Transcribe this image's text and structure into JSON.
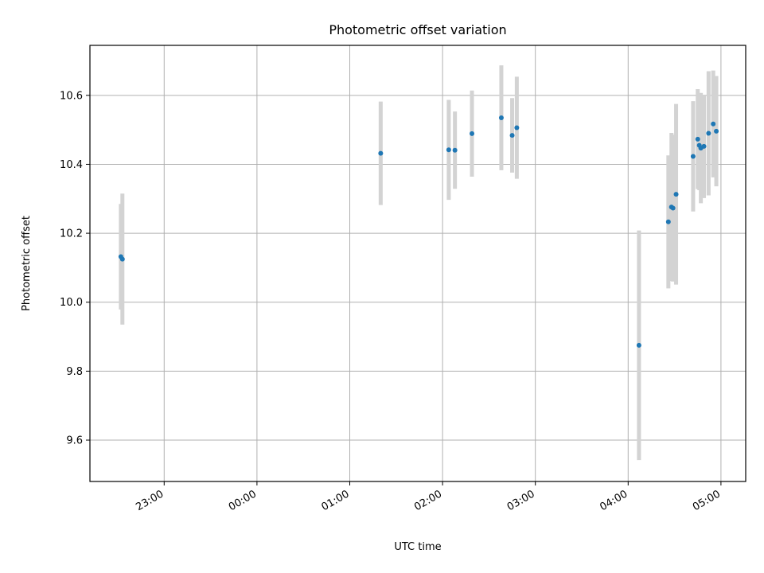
{
  "chart_data": {
    "type": "scatter",
    "title": "Photometric offset variation",
    "xlabel": "UTC time",
    "ylabel": "Photometric offset",
    "x_axis": {
      "type": "time",
      "range": [
        "22:12",
        "05:16"
      ],
      "ticks": [
        "23:00",
        "00:00",
        "01:00",
        "02:00",
        "03:00",
        "04:00",
        "05:00"
      ]
    },
    "y_axis": {
      "range": [
        9.48,
        10.745
      ],
      "ticks": [
        "9.6",
        "9.8",
        "10.0",
        "10.2",
        "10.4",
        "10.6"
      ]
    },
    "grid": true,
    "colors": {
      "point": "#1f77b4",
      "errorbar": "#d3d3d3",
      "grid": "#b0b0b0"
    },
    "series": [
      {
        "points": [
          {
            "x": "22:32",
            "y": 10.132,
            "err": 0.153
          },
          {
            "x": "22:33",
            "y": 10.125,
            "err": 0.19
          },
          {
            "x": "01:20",
            "y": 10.432,
            "err": 0.15
          },
          {
            "x": "02:04",
            "y": 10.442,
            "err": 0.145
          },
          {
            "x": "02:08",
            "y": 10.441,
            "err": 0.112
          },
          {
            "x": "02:19",
            "y": 10.489,
            "err": 0.125
          },
          {
            "x": "02:38",
            "y": 10.535,
            "err": 0.152
          },
          {
            "x": "02:45",
            "y": 10.484,
            "err": 0.108
          },
          {
            "x": "02:48",
            "y": 10.506,
            "err": 0.148
          },
          {
            "x": "04:07",
            "y": 9.875,
            "err": 0.333
          },
          {
            "x": "04:26",
            "y": 10.233,
            "err": 0.193
          },
          {
            "x": "04:28",
            "y": 10.276,
            "err": 0.215
          },
          {
            "x": "04:29",
            "y": 10.273,
            "err": 0.213
          },
          {
            "x": "04:31",
            "y": 10.313,
            "err": 0.262
          },
          {
            "x": "04:42",
            "y": 10.423,
            "err": 0.16
          },
          {
            "x": "04:45",
            "y": 10.473,
            "err": 0.145
          },
          {
            "x": "04:46",
            "y": 10.455,
            "err": 0.13
          },
          {
            "x": "04:47",
            "y": 10.447,
            "err": 0.16
          },
          {
            "x": "04:49",
            "y": 10.452,
            "err": 0.15
          },
          {
            "x": "04:52",
            "y": 10.49,
            "err": 0.18
          },
          {
            "x": "04:55",
            "y": 10.517,
            "err": 0.155
          },
          {
            "x": "04:57",
            "y": 10.496,
            "err": 0.16
          }
        ]
      }
    ]
  }
}
